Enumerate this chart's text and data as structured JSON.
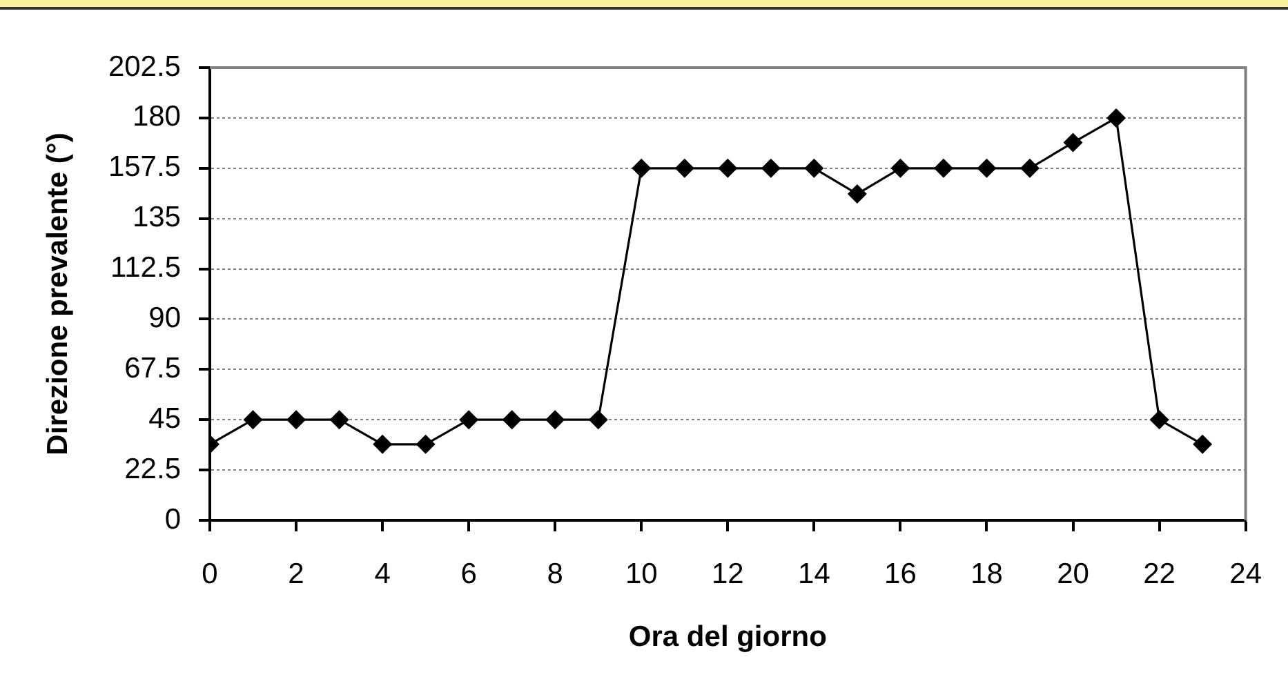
{
  "chart_data": {
    "type": "line",
    "xlabel": "Ora del giorno",
    "ylabel": "Direzione prevalente (°)",
    "x": [
      0,
      1,
      2,
      3,
      4,
      5,
      6,
      7,
      8,
      9,
      10,
      11,
      12,
      13,
      14,
      15,
      16,
      17,
      18,
      19,
      20,
      21,
      22,
      23
    ],
    "values": [
      34,
      45,
      45,
      45,
      34,
      34,
      45,
      45,
      45,
      45,
      157.5,
      157.5,
      157.5,
      157.5,
      157.5,
      146,
      157.5,
      157.5,
      157.5,
      157.5,
      169,
      180,
      45,
      34
    ],
    "color": "#000000",
    "marker": "diamond",
    "xlim": [
      0,
      24
    ],
    "xticks": [
      0,
      2,
      4,
      6,
      8,
      10,
      12,
      14,
      16,
      18,
      20,
      22,
      24
    ],
    "ylim": [
      0,
      202.5
    ],
    "yticks": [
      0,
      22.5,
      45,
      67.5,
      90,
      112.5,
      135,
      157.5,
      180,
      202.5
    ],
    "grid": "y"
  }
}
